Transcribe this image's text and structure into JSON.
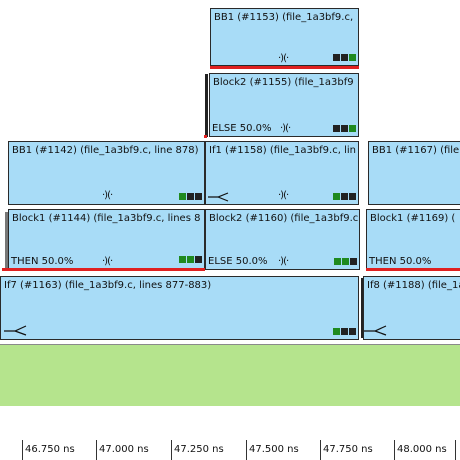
{
  "blocks": {
    "bb1_1153": {
      "title": "BB1 (#1153)  (file_1a3bf9.c,"
    },
    "block2_1155": {
      "title": "Block2 (#1155)  (file_1a3bf9",
      "branch": "ELSE 50.0%"
    },
    "bb1_1142": {
      "title": "BB1 (#1142)  (file_1a3bf9.c, line 878)"
    },
    "if1_1158": {
      "title": "If1 (#1158)  (file_1a3bf9.c, lin"
    },
    "bb1_1167": {
      "title": "BB1 (#1167)  (file"
    },
    "block1_1144": {
      "title": "Block1 (#1144)  (file_1a3bf9.c, lines 8",
      "branch": "THEN 50.0%"
    },
    "block2_1160": {
      "title": "Block2 (#1160)  (file_1a3bf9.c",
      "branch": "ELSE 50.0%"
    },
    "block1_1169": {
      "title": "Block1 (#1169)  (",
      "branch": "THEN 50.0%"
    },
    "if7_1163": {
      "title": "If7 (#1163)  (file_1a3bf9.c, lines 877-883)"
    },
    "if8_1188": {
      "title": "If8 (#1188)  (file_1a"
    }
  },
  "icons": {
    "pipe": "pipeline-icon",
    "fork": "branch-fork-icon",
    "status": "status-squares-icon"
  },
  "colors": {
    "block": "#a8dcf7",
    "lane": "#b5e48d",
    "critical": "#e02020",
    "status_green": "#1f8a1f",
    "status_dark": "#222222"
  },
  "ruler": {
    "ticks": [
      "46.750 ns",
      "47.000 ns",
      "47.250 ns",
      "47.500 ns",
      "47.750 ns",
      "48.000 ns"
    ]
  }
}
